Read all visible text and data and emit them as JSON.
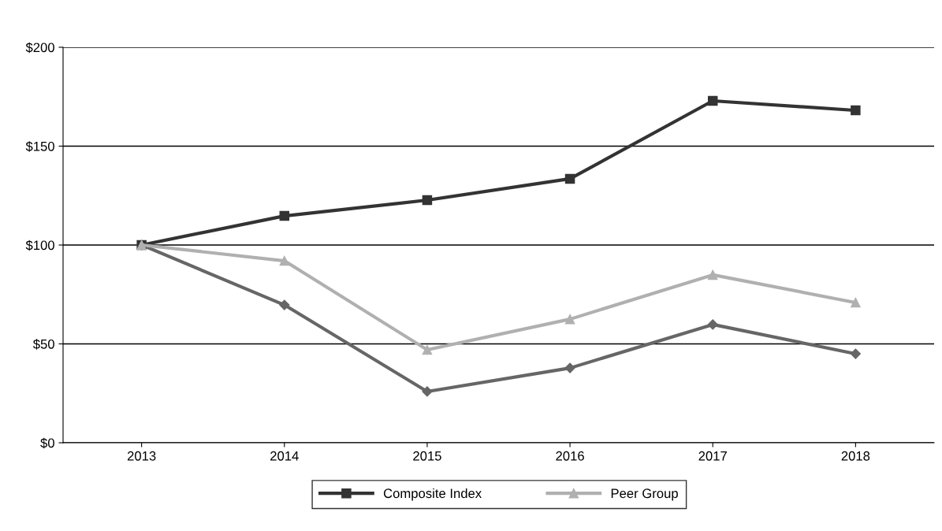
{
  "chart_data": {
    "type": "line",
    "categories": [
      "2013",
      "2014",
      "2015",
      "2016",
      "2017",
      "2018"
    ],
    "series": [
      {
        "color": "#666666",
        "marker": "diamond",
        "values": [
          100,
          69.7,
          25.9,
          37.8,
          59.8,
          45
        ]
      },
      {
        "name": "Composite Index",
        "color": "#333333",
        "marker": "square",
        "values": [
          100,
          114.7,
          122.7,
          133.5,
          172.9,
          168.1
        ]
      },
      {
        "name": "Peer Group",
        "color": "#b0b0b0",
        "marker": "triangle",
        "values": [
          100,
          92,
          47,
          62.5,
          84.9,
          70.9
        ]
      }
    ],
    "ylim": [
      0,
      200
    ],
    "yticks": [
      {
        "value": 0,
        "label": "$0"
      },
      {
        "value": 50,
        "label": "$50"
      },
      {
        "value": 100,
        "label": "$100"
      },
      {
        "value": 150,
        "label": "$150"
      },
      {
        "value": 200,
        "label": "$200"
      }
    ],
    "grid": "y",
    "legend": "bottom",
    "line_style": "solid"
  }
}
